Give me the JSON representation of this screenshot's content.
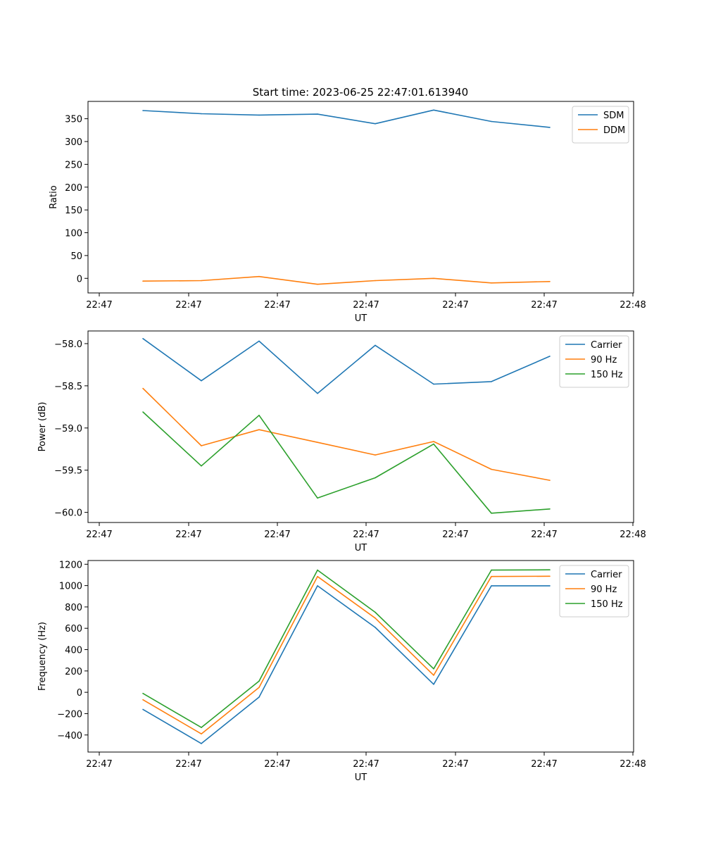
{
  "figure_title": "Start time: 2023-06-25 22:47:01.613940",
  "colors": {
    "blue": "#1f77b4",
    "orange": "#ff7f0e",
    "green": "#2ca02c"
  },
  "x_tick_labels": [
    "22:47",
    "22:47",
    "22:47",
    "22:47",
    "22:47",
    "22:47",
    "22:47",
    "22:48"
  ],
  "chart_data": [
    {
      "type": "line",
      "title": "Start time: 2023-06-25 22:47:01.613940",
      "xlabel": "UT",
      "ylabel": "Ratio",
      "legend_position": "top-right",
      "ylim": [
        -32,
        388
      ],
      "y_ticks": [
        0,
        50,
        100,
        150,
        200,
        250,
        300,
        350
      ],
      "series": [
        {
          "name": "SDM",
          "color": "#1f77b4",
          "values": [
            368,
            361,
            358,
            360,
            339,
            369,
            344,
            331
          ]
        },
        {
          "name": "DDM",
          "color": "#ff7f0e",
          "values": [
            -6,
            -5,
            4,
            -13,
            -5,
            0,
            -10,
            -7
          ]
        }
      ]
    },
    {
      "type": "line",
      "xlabel": "UT",
      "ylabel": "Power (dB)",
      "legend_position": "top-right",
      "ylim": [
        -60.12,
        -57.85
      ],
      "y_ticks": [
        -60.0,
        -59.5,
        -59.0,
        -58.5,
        -58.0
      ],
      "y_tick_labels": [
        "−60.0",
        "−59.5",
        "−59.0",
        "−58.5",
        "−58.0"
      ],
      "series": [
        {
          "name": "Carrier",
          "color": "#1f77b4",
          "values": [
            -57.94,
            -58.44,
            -57.97,
            -58.59,
            -58.02,
            -58.48,
            -58.45,
            -58.15
          ]
        },
        {
          "name": "90 Hz",
          "color": "#ff7f0e",
          "values": [
            -58.53,
            -59.21,
            -59.02,
            -59.17,
            -59.32,
            -59.16,
            -59.49,
            -59.62
          ]
        },
        {
          "name": "150 Hz",
          "color": "#2ca02c",
          "values": [
            -58.81,
            -59.45,
            -58.85,
            -59.83,
            -59.59,
            -59.19,
            -60.01,
            -59.96
          ]
        }
      ]
    },
    {
      "type": "line",
      "xlabel": "UT",
      "ylabel": "Frequency (Hz)",
      "legend_position": "top-right",
      "ylim": [
        -560,
        1235
      ],
      "y_ticks": [
        -400,
        -200,
        0,
        200,
        400,
        600,
        800,
        1000,
        1200
      ],
      "y_tick_labels": [
        "−400",
        "−200",
        "0",
        "200",
        "400",
        "600",
        "800",
        "1000",
        "1200"
      ],
      "series": [
        {
          "name": "Carrier",
          "color": "#1f77b4",
          "values": [
            -160,
            -480,
            -45,
            998,
            608,
            75,
            998,
            998
          ]
        },
        {
          "name": "90 Hz",
          "color": "#ff7f0e",
          "values": [
            -70,
            -390,
            45,
            1085,
            695,
            160,
            1085,
            1088
          ]
        },
        {
          "name": "150 Hz",
          "color": "#2ca02c",
          "values": [
            -10,
            -330,
            105,
            1145,
            750,
            220,
            1145,
            1148
          ]
        }
      ]
    }
  ]
}
